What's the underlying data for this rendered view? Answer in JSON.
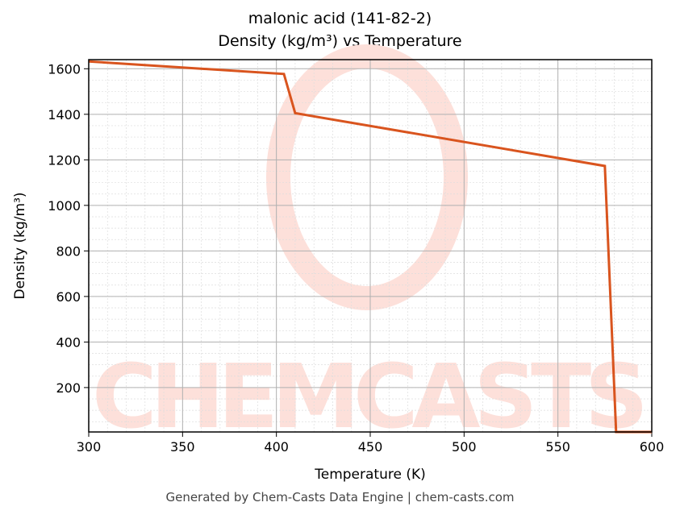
{
  "title_line1": "malonic acid (141-82-2)",
  "title_line2": "Density (kg/m³) vs Temperature",
  "footer": "Generated by Chem-Casts Data Engine | chem-casts.com",
  "watermark": "CHEMCASTS",
  "colors": {
    "line": "#d9541e",
    "watermark": "#fde0da"
  },
  "chart_data": {
    "type": "line",
    "title": "malonic acid (141-82-2) Density (kg/m³) vs Temperature",
    "xlabel": "Temperature (K)",
    "ylabel": "Density (kg/m³)",
    "xlim": [
      300,
      600
    ],
    "ylim": [
      5,
      1640
    ],
    "xticks": [
      300,
      350,
      400,
      450,
      500,
      550,
      600
    ],
    "yticks": [
      200,
      400,
      600,
      800,
      1000,
      1200,
      1400,
      1600
    ],
    "grid": true,
    "series": [
      {
        "name": "Density",
        "x": [
          300,
          404,
          410,
          575,
          581,
          600
        ],
        "y": [
          1632,
          1577,
          1405,
          1173,
          5,
          5
        ]
      }
    ]
  }
}
